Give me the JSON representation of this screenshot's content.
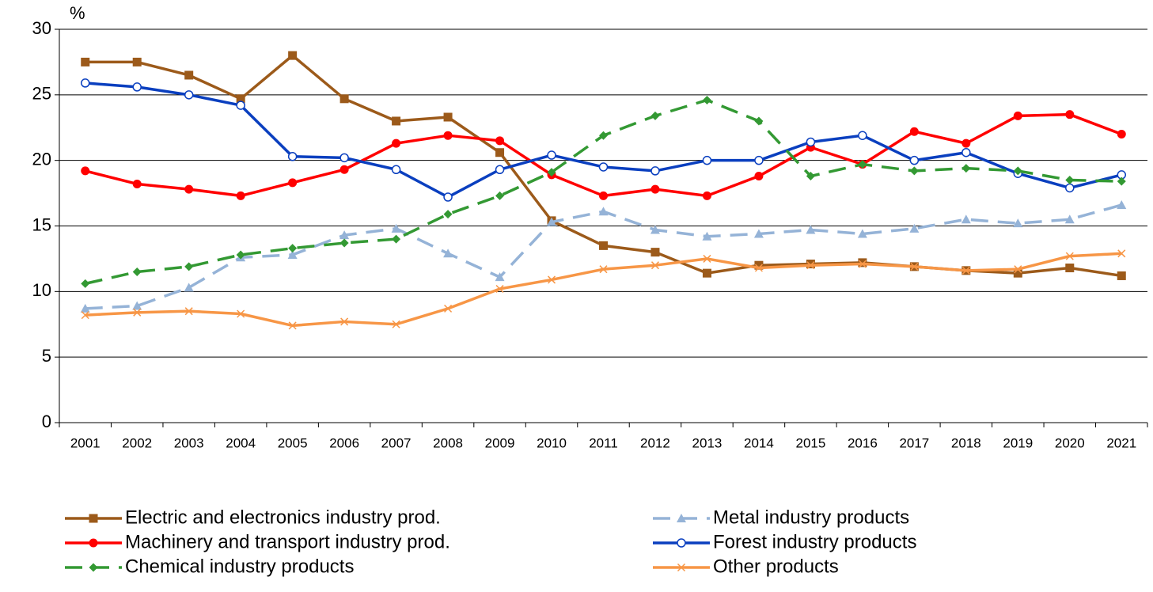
{
  "chart_data": {
    "type": "line",
    "y_label": "%",
    "categories": [
      "2001",
      "2002",
      "2003",
      "2004",
      "2005",
      "2006",
      "2007",
      "2008",
      "2009",
      "2010",
      "2011",
      "2012",
      "2013",
      "2014",
      "2015",
      "2016",
      "2017",
      "2018",
      "2019",
      "2020",
      "2021"
    ],
    "ylim": [
      0,
      30
    ],
    "yticks": [
      0,
      5,
      10,
      15,
      20,
      25,
      30
    ],
    "grid": true,
    "series": [
      {
        "name": "Electric and electronics industry prod.",
        "color": "#9c5a1a",
        "marker": "square",
        "dash": false,
        "values": [
          27.5,
          27.5,
          26.5,
          24.7,
          28.0,
          24.7,
          23.0,
          23.3,
          20.6,
          15.4,
          13.5,
          13.0,
          11.4,
          12.0,
          12.1,
          12.2,
          11.9,
          11.6,
          11.4,
          11.8,
          11.2
        ]
      },
      {
        "name": "Metal industry products",
        "color": "#95b3d7",
        "marker": "triangle",
        "dash": true,
        "values": [
          8.7,
          8.9,
          10.3,
          12.6,
          12.8,
          14.3,
          14.8,
          12.9,
          11.1,
          15.3,
          16.1,
          14.7,
          14.2,
          14.4,
          14.7,
          14.4,
          14.8,
          15.5,
          15.2,
          15.5,
          16.6
        ]
      },
      {
        "name": "Machinery and transport industry prod.",
        "color": "#ff0000",
        "marker": "circle",
        "dash": false,
        "values": [
          19.2,
          18.2,
          17.8,
          17.3,
          18.3,
          19.3,
          21.3,
          21.9,
          21.5,
          18.9,
          17.3,
          17.8,
          17.3,
          18.8,
          21.0,
          19.7,
          22.2,
          21.3,
          23.4,
          23.5,
          22.0
        ]
      },
      {
        "name": "Forest industry products",
        "color": "#0a3fbf",
        "marker": "open-circle",
        "dash": false,
        "values": [
          25.9,
          25.6,
          25.0,
          24.2,
          20.3,
          20.2,
          19.3,
          17.2,
          19.3,
          20.4,
          19.5,
          19.2,
          20.0,
          20.0,
          21.4,
          21.9,
          20.0,
          20.6,
          19.0,
          17.9,
          18.9
        ]
      },
      {
        "name": "Chemical industry products",
        "color": "#339933",
        "marker": "diamond",
        "dash": true,
        "values": [
          10.6,
          11.5,
          11.9,
          12.8,
          13.3,
          13.7,
          14.0,
          15.9,
          17.3,
          19.1,
          21.9,
          23.4,
          24.6,
          23.0,
          18.8,
          19.7,
          19.2,
          19.4,
          19.2,
          18.5,
          18.4
        ]
      },
      {
        "name": "Other products",
        "color": "#f79646",
        "marker": "x",
        "dash": false,
        "values": [
          8.2,
          8.4,
          8.5,
          8.3,
          7.4,
          7.7,
          7.5,
          8.7,
          10.2,
          10.9,
          11.7,
          12.0,
          12.5,
          11.8,
          12.0,
          12.1,
          11.9,
          11.6,
          11.7,
          12.7,
          12.9
        ]
      }
    ]
  }
}
